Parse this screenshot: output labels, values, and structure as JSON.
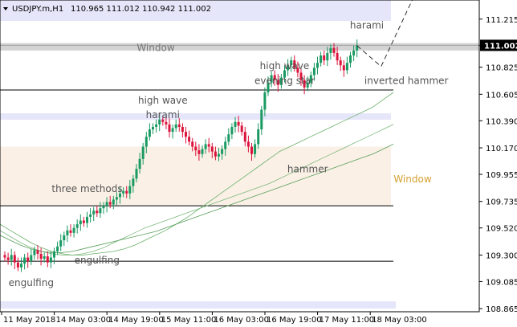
{
  "chart_data": {
    "type": "candlestick",
    "symbol_header": "USDJPY.m,H1",
    "ohlc_header": "110.965 111.012 110.942 111.002",
    "current_price": 111.002,
    "y_axis": {
      "ticks": [
        111.215,
        111.002,
        110.825,
        110.605,
        110.39,
        110.17,
        109.955,
        109.735,
        109.52,
        109.3,
        109.085,
        108.865
      ],
      "tick_labels": [
        "111.215",
        "",
        "110.825",
        "110.605",
        "110.390",
        "110.170",
        "109.955",
        "109.735",
        "109.520",
        "109.300",
        "109.085",
        "108.865"
      ],
      "range": [
        108.84,
        111.37
      ]
    },
    "x_axis": {
      "tick_labels": [
        "11 May 2018",
        "14 May 03:00",
        "14 May 19:00",
        "15 May 11:00",
        "16 May 03:00",
        "16 May 19:00",
        "17 May 11:00",
        "18 May 03:00"
      ],
      "tick_bar_index": [
        0,
        16,
        32,
        48,
        64,
        80,
        96,
        112
      ]
    },
    "price_close": [
      109.28,
      109.26,
      109.3,
      109.24,
      109.2,
      109.23,
      109.28,
      109.25,
      109.3,
      109.34,
      109.31,
      109.27,
      109.29,
      109.24,
      109.28,
      109.33,
      109.37,
      109.42,
      109.46,
      109.5,
      109.48,
      109.52,
      109.55,
      109.58,
      109.56,
      109.61,
      109.63,
      109.66,
      109.64,
      109.68,
      109.7,
      109.73,
      109.71,
      109.75,
      109.77,
      109.8,
      109.82,
      109.8,
      109.86,
      109.92,
      110.0,
      110.08,
      110.18,
      110.26,
      110.32,
      110.34,
      110.36,
      110.4,
      110.38,
      110.36,
      110.3,
      110.33,
      110.36,
      110.34,
      110.3,
      110.26,
      110.22,
      110.18,
      110.15,
      110.12,
      110.16,
      110.2,
      110.18,
      110.14,
      110.1,
      110.12,
      110.16,
      110.22,
      110.28,
      110.34,
      110.38,
      110.35,
      110.3,
      110.22,
      110.18,
      110.12,
      110.2,
      110.32,
      110.48,
      110.62,
      110.7,
      110.76,
      110.72,
      110.68,
      110.74,
      110.8,
      110.84,
      110.88,
      110.82,
      110.78,
      110.72,
      110.66,
      110.7,
      110.76,
      110.82,
      110.86,
      110.92,
      110.88,
      110.94,
      110.98,
      110.94,
      110.88,
      110.84,
      110.8,
      110.86,
      110.92,
      110.96,
      111.0
    ],
    "ma_series": [
      {
        "values": [
          109.55,
          109.5,
          109.45,
          109.4,
          109.36,
          109.33,
          109.31,
          109.3,
          109.3,
          109.31,
          109.32,
          109.33,
          109.35,
          109.38,
          109.42,
          109.46,
          109.5,
          109.55,
          109.6,
          109.66,
          109.72,
          109.78,
          109.84,
          109.9,
          109.96,
          110.02,
          110.08,
          110.14,
          110.18,
          110.22,
          110.26,
          110.3,
          110.34,
          110.38,
          110.42,
          110.46,
          110.5,
          110.56,
          110.62
        ]
      },
      {
        "values": [
          109.5,
          109.45,
          109.4,
          109.36,
          109.33,
          109.31,
          109.3,
          109.3,
          109.31,
          109.33,
          109.36,
          109.4,
          109.44,
          109.48,
          109.52,
          109.55,
          109.58,
          109.61,
          109.64,
          109.67,
          109.7,
          109.73,
          109.76,
          109.79,
          109.82,
          109.85,
          109.88,
          109.92,
          109.96,
          110.0,
          110.04,
          110.08,
          110.12,
          110.16,
          110.2,
          110.24,
          110.28,
          110.32,
          110.36
        ]
      },
      {
        "values": [
          109.46,
          109.42,
          109.38,
          109.35,
          109.33,
          109.32,
          109.32,
          109.33,
          109.35,
          109.37,
          109.39,
          109.41,
          109.43,
          109.45,
          109.47,
          109.49,
          109.52,
          109.55,
          109.58,
          109.61,
          109.64,
          109.67,
          109.7,
          109.73,
          109.76,
          109.79,
          109.82,
          109.85,
          109.88,
          109.91,
          109.94,
          109.97,
          110.0,
          110.03,
          110.06,
          110.09,
          110.12,
          110.16,
          110.2
        ]
      }
    ],
    "horizontal_lines": [
      111.002,
      110.64,
      109.7,
      109.25
    ],
    "zones": [
      {
        "kind": "resistance",
        "label": "Window",
        "from": 110.96,
        "to": 111.02
      },
      {
        "kind": "support",
        "label": "Window",
        "from": 109.7,
        "to": 110.18
      }
    ],
    "annotations": [
      {
        "text": "harami",
        "bar": 110,
        "price": 111.14
      },
      {
        "text": "high wave",
        "bar": 85,
        "price": 110.81
      },
      {
        "text": "evening star",
        "bar": 85,
        "price": 110.69
      },
      {
        "text": "inverted hammer",
        "bar": 122,
        "price": 110.69
      },
      {
        "text": "high wave",
        "bar": 48,
        "price": 110.53
      },
      {
        "text": "harami",
        "bar": 48,
        "price": 110.41
      },
      {
        "text": "hammer",
        "bar": 92,
        "price": 109.97
      },
      {
        "text": "three methods",
        "bar": 25,
        "price": 109.81
      },
      {
        "text": "engulfing",
        "bar": 28,
        "price": 109.23
      },
      {
        "text": "engulfing",
        "bar": 8,
        "price": 109.05
      }
    ]
  }
}
